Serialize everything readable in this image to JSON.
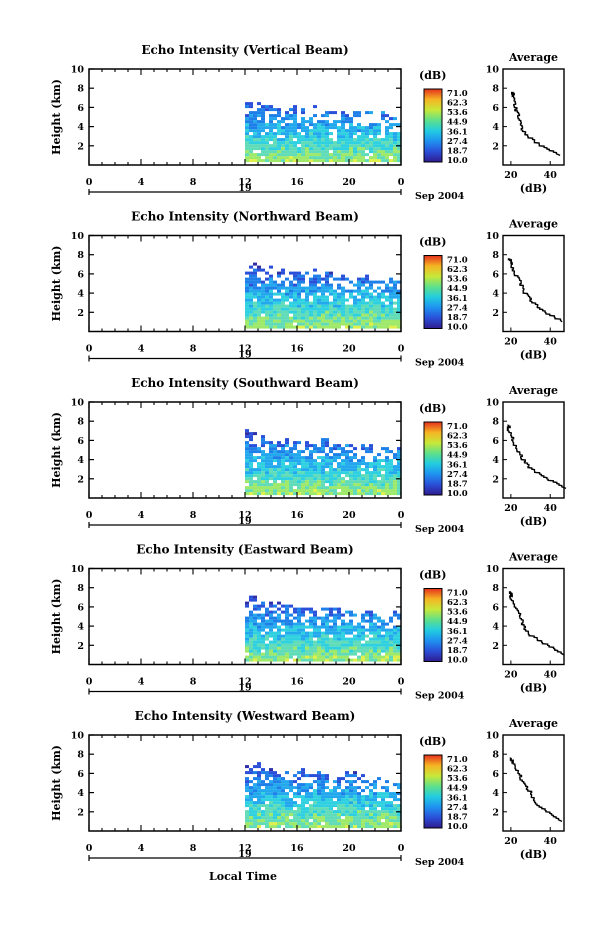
{
  "chart_data": {
    "type": "heatmap",
    "xlabel": "Local Time",
    "date_label": "19",
    "month_year": "Sep 2004",
    "x_ticks": [
      "0",
      "4",
      "8",
      "12",
      "16",
      "20",
      "0"
    ],
    "x_range_hours": [
      0,
      24
    ],
    "data_start_hour": 12,
    "ylabel": "Height (km)",
    "y_ticks": [
      "2",
      "4",
      "6",
      "8",
      "10"
    ],
    "y_range_km": [
      0,
      10
    ],
    "colorbar": {
      "unit": "(dB)",
      "labels": [
        "71.0",
        "62.3",
        "53.6",
        "44.9",
        "36.1",
        "27.4",
        "18.7",
        "10.0"
      ],
      "range": [
        10.0,
        71.0
      ],
      "colors": [
        "#2f1b8e",
        "#2a4fd8",
        "#1f92f0",
        "#22cce0",
        "#5fe08a",
        "#c8e83a",
        "#f5b423",
        "#e5301d"
      ]
    },
    "profile": {
      "title": "Average",
      "xlabel": "(dB)",
      "x_ticks": [
        "20",
        "40"
      ],
      "y_ticks": [
        "2",
        "4",
        "6",
        "8",
        "10"
      ]
    },
    "panels": [
      {
        "title": "Echo Intensity (Vertical Beam)",
        "echo_top_km": 6.5,
        "profile_km": [
          1,
          2,
          3,
          4,
          5,
          6,
          7,
          7.5
        ],
        "profile_db": [
          45,
          35,
          28,
          25,
          24,
          22,
          21,
          21
        ]
      },
      {
        "title": "Echo Intensity (Northward Beam)",
        "echo_top_km": 6.8,
        "profile_km": [
          1,
          2,
          3,
          4,
          5,
          6,
          7,
          7.5
        ],
        "profile_db": [
          46,
          37,
          31,
          27,
          25,
          22,
          20,
          19
        ]
      },
      {
        "title": "Echo Intensity (Southward Beam)",
        "echo_top_km": 6.6,
        "profile_km": [
          1,
          2,
          3,
          4,
          5,
          6,
          7,
          7.5
        ],
        "profile_db": [
          48,
          38,
          30,
          26,
          23,
          21,
          19,
          19
        ]
      },
      {
        "title": "Echo Intensity (Eastward Beam)",
        "echo_top_km": 6.7,
        "profile_km": [
          1,
          2,
          3,
          4,
          5,
          6,
          7,
          7.5
        ],
        "profile_db": [
          47,
          38,
          30,
          26,
          25,
          22,
          20,
          20
        ]
      },
      {
        "title": "Echo Intensity (Westward Beam)",
        "echo_top_km": 6.8,
        "profile_km": [
          1,
          2,
          3,
          4,
          5,
          6,
          7,
          7.5
        ],
        "profile_db": [
          46,
          38,
          32,
          30,
          26,
          24,
          21,
          20
        ]
      }
    ]
  }
}
